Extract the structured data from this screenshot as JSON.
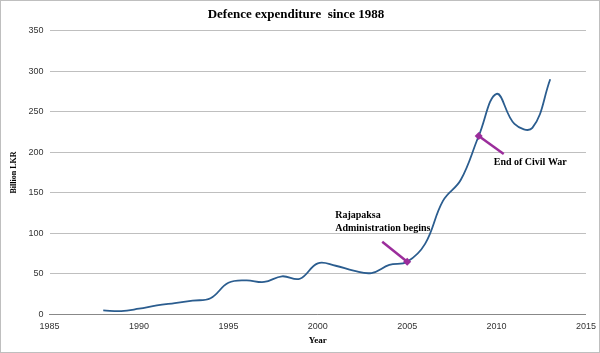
{
  "chart_data": {
    "type": "line",
    "title": "Defence expenditure  since 1988",
    "x_label": "Year",
    "y_label": "Billion LKR",
    "x": [
      1988,
      1989,
      1990,
      1991,
      1992,
      1993,
      1994,
      1995,
      1996,
      1997,
      1998,
      1999,
      2000,
      2001,
      2002,
      2003,
      2004,
      2005,
      2006,
      2007,
      2008,
      2009,
      2010,
      2011,
      2012,
      2013
    ],
    "values": [
      5,
      4,
      7,
      11,
      14,
      17,
      20,
      39,
      42,
      40,
      47,
      44,
      63,
      60,
      54,
      51,
      61,
      65,
      87,
      140,
      166,
      220,
      272,
      235,
      230,
      290
    ],
    "color": "#2b5d8f",
    "xlim": [
      1985,
      2015
    ],
    "xticks": [
      1985,
      1990,
      1995,
      2000,
      2005,
      2010,
      2015
    ],
    "ylim": [
      0,
      350
    ],
    "yticks": [
      0,
      50,
      100,
      150,
      200,
      250,
      300,
      350
    ],
    "grid": true,
    "annotations": [
      {
        "text": [
          "Rajapaksa",
          "Administration begins"
        ],
        "x": 2005,
        "y": 65
      },
      {
        "text": [
          "End of Civil War"
        ],
        "x": 2009,
        "y": 220
      }
    ]
  }
}
